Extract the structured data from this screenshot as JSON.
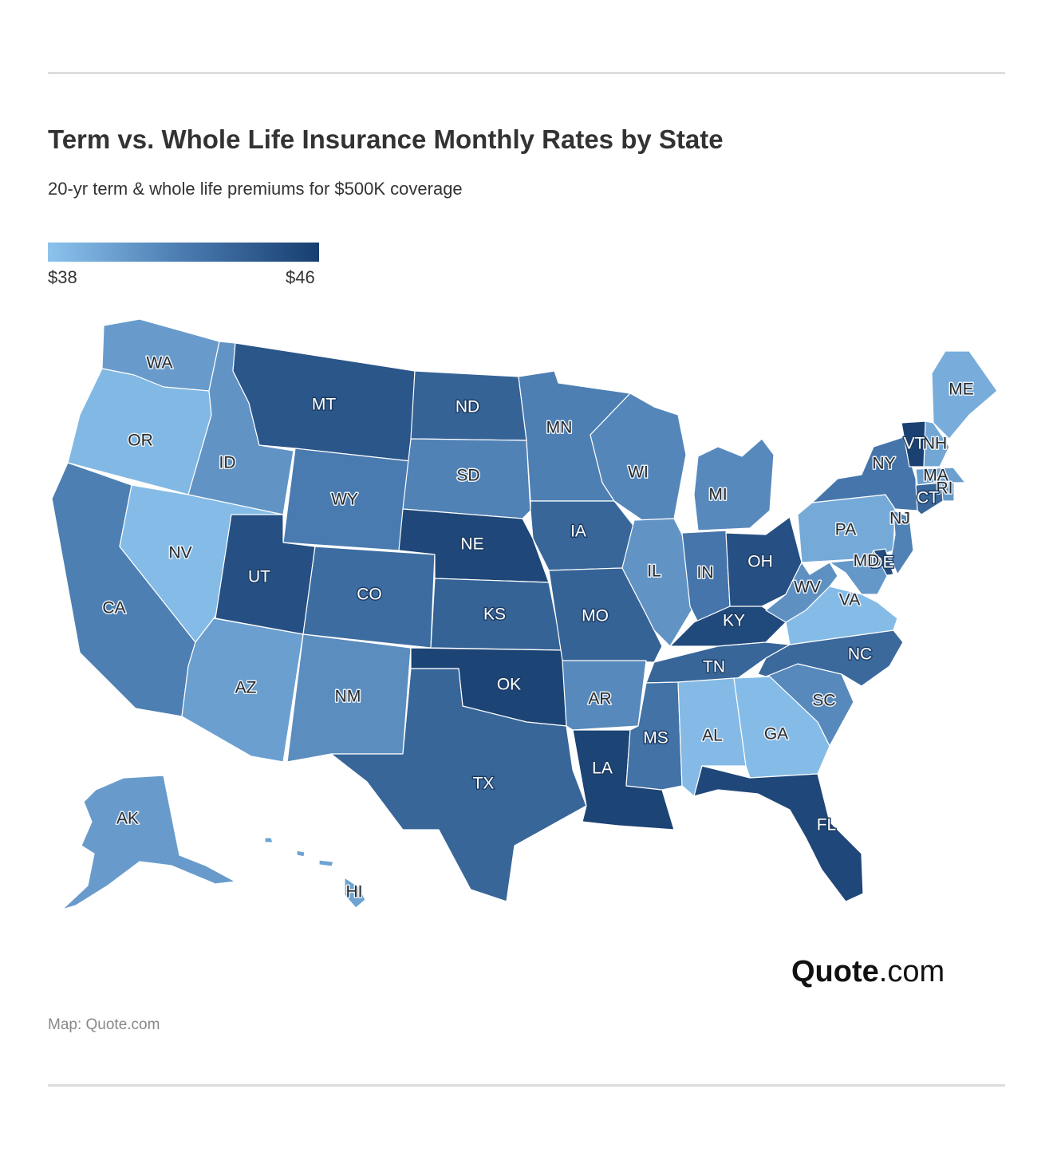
{
  "header": {
    "title": "Term vs. Whole Life Insurance Monthly Rates by State",
    "subtitle": "20-yr term & whole life premiums for $500K coverage"
  },
  "legend": {
    "min_label": "$38",
    "max_label": "$46",
    "min_value": 38,
    "max_value": 46
  },
  "colors": {
    "low": "#8cc3ed",
    "mid": "#4a7bb0",
    "high": "#173e6f",
    "border": "#ffffff"
  },
  "chart_data": {
    "type": "choropleth",
    "title": "Term vs. Whole Life Insurance Monthly Rates by State",
    "value_unit": "USD per month",
    "states": [
      {
        "id": "WA",
        "value": 40.2
      },
      {
        "id": "OR",
        "value": 38.6
      },
      {
        "id": "CA",
        "value": 41.8
      },
      {
        "id": "NV",
        "value": 38.4
      },
      {
        "id": "ID",
        "value": 40.6
      },
      {
        "id": "MT",
        "value": 44.4
      },
      {
        "id": "WY",
        "value": 42.0
      },
      {
        "id": "UT",
        "value": 44.8
      },
      {
        "id": "AZ",
        "value": 40.0
      },
      {
        "id": "CO",
        "value": 43.0
      },
      {
        "id": "NM",
        "value": 41.0
      },
      {
        "id": "ND",
        "value": 43.6
      },
      {
        "id": "SD",
        "value": 41.6
      },
      {
        "id": "NE",
        "value": 45.4
      },
      {
        "id": "KS",
        "value": 43.6
      },
      {
        "id": "OK",
        "value": 45.6
      },
      {
        "id": "TX",
        "value": 43.4
      },
      {
        "id": "MN",
        "value": 41.8
      },
      {
        "id": "IA",
        "value": 43.4
      },
      {
        "id": "MO",
        "value": 43.6
      },
      {
        "id": "AR",
        "value": 41.2
      },
      {
        "id": "LA",
        "value": 45.6
      },
      {
        "id": "WI",
        "value": 41.4
      },
      {
        "id": "IL",
        "value": 40.6
      },
      {
        "id": "MI",
        "value": 41.2
      },
      {
        "id": "IN",
        "value": 42.4
      },
      {
        "id": "OH",
        "value": 44.8
      },
      {
        "id": "KY",
        "value": 45.2
      },
      {
        "id": "TN",
        "value": 43.4
      },
      {
        "id": "MS",
        "value": 42.6
      },
      {
        "id": "AL",
        "value": 38.5
      },
      {
        "id": "GA",
        "value": 38.4
      },
      {
        "id": "FL",
        "value": 45.4
      },
      {
        "id": "SC",
        "value": 41.2
      },
      {
        "id": "NC",
        "value": 43.2
      },
      {
        "id": "VA",
        "value": 38.4
      },
      {
        "id": "WV",
        "value": 40.8
      },
      {
        "id": "PA",
        "value": 39.4
      },
      {
        "id": "NY",
        "value": 42.4
      },
      {
        "id": "ME",
        "value": 39.2
      },
      {
        "id": "NH",
        "value": 39.6
      },
      {
        "id": "VT",
        "value": 45.8
      },
      {
        "id": "MA",
        "value": 40.0
      },
      {
        "id": "RI",
        "value": 40.4
      },
      {
        "id": "CT",
        "value": 43.4
      },
      {
        "id": "NJ",
        "value": 41.6
      },
      {
        "id": "DE",
        "value": 45.0
      },
      {
        "id": "MD",
        "value": 40.4
      },
      {
        "id": "AK",
        "value": 40.2
      },
      {
        "id": "HI",
        "value": 39.8
      }
    ]
  },
  "branding": {
    "logo_bold": "Quote",
    "logo_suffix": ".com"
  },
  "footer": {
    "credit": "Map: Quote.com"
  }
}
